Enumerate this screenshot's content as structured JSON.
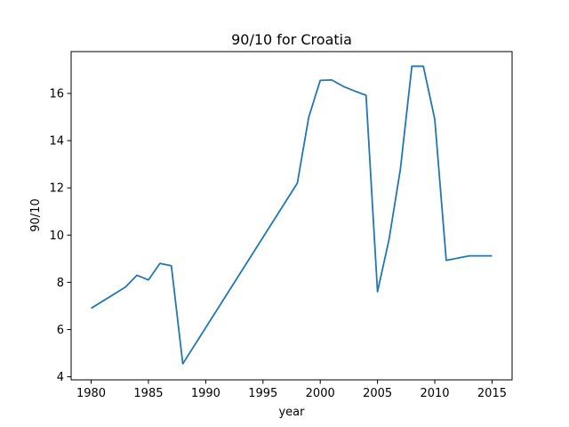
{
  "chart_data": {
    "type": "line",
    "title": "90/10 for Croatia",
    "xlabel": "year",
    "ylabel": "90/10",
    "xlim": [
      1978.25,
      2016.75
    ],
    "ylim": [
      3.87,
      17.77
    ],
    "xticks": [
      1980,
      1985,
      1990,
      1995,
      2000,
      2005,
      2010,
      2015
    ],
    "yticks": [
      4,
      6,
      8,
      10,
      12,
      14,
      16
    ],
    "grid": false,
    "series": [
      {
        "color": "#1f77b4",
        "x": [
          1980,
          1983,
          1984,
          1985,
          1986,
          1987,
          1988,
          1998,
          1999,
          2000,
          2001,
          2002,
          2003,
          2004,
          2005,
          2006,
          2007,
          2008,
          2009,
          2010,
          2011,
          2013,
          2014,
          2015
        ],
        "y": [
          6.9,
          7.8,
          8.3,
          8.1,
          8.8,
          8.7,
          4.55,
          12.2,
          15.0,
          16.55,
          16.57,
          16.3,
          16.1,
          15.92,
          7.6,
          9.8,
          12.8,
          17.15,
          17.15,
          14.9,
          8.93,
          9.12,
          9.12,
          9.12
        ]
      }
    ]
  }
}
